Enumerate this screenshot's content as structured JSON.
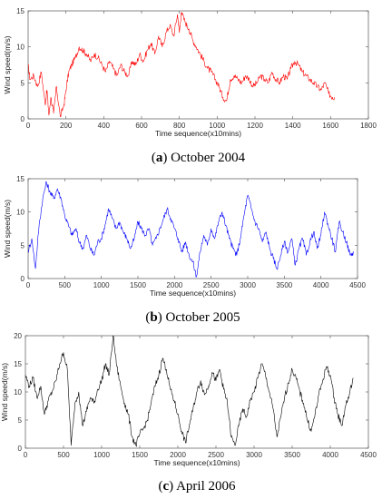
{
  "chart_data": [
    {
      "type": "line",
      "caption_letter": "a",
      "caption_text": "October 2004",
      "xlabel": "Time sequence(x10mins)",
      "ylabel": "Wind speed(m/s)",
      "xlim": [
        0,
        1800
      ],
      "ylim": [
        0,
        15
      ],
      "xticks": [
        0,
        200,
        400,
        600,
        800,
        1000,
        1200,
        1400,
        1600,
        1800
      ],
      "yticks": [
        0,
        5,
        10,
        15
      ],
      "color": "#ff0000",
      "grid": false,
      "series": [
        {
          "x": [
            0,
            10,
            30,
            50,
            70,
            90,
            100,
            110,
            120,
            135,
            150,
            170,
            190,
            200,
            215,
            230,
            250,
            270,
            290,
            310,
            330,
            350,
            370,
            390,
            410,
            430,
            450,
            470,
            490,
            510,
            530,
            550,
            570,
            590,
            610,
            630,
            650,
            670,
            690,
            710,
            730,
            750,
            770,
            790,
            800,
            810,
            830,
            850,
            870,
            890,
            910,
            930,
            950,
            970,
            990,
            1010,
            1030,
            1050,
            1070,
            1090,
            1110,
            1130,
            1150,
            1170,
            1190,
            1210,
            1230,
            1250,
            1270,
            1290,
            1310,
            1330,
            1350,
            1370,
            1390,
            1410,
            1430,
            1450,
            1470,
            1490,
            1510,
            1530,
            1550,
            1570,
            1590,
            1610,
            1620
          ],
          "y": [
            7.5,
            5.5,
            6.0,
            4.5,
            6.5,
            2.0,
            4.0,
            0.5,
            3.0,
            0.8,
            4.5,
            0.3,
            2.0,
            4.0,
            6.5,
            7.5,
            8.5,
            10.0,
            9.5,
            9.0,
            8.0,
            9.0,
            8.5,
            7.5,
            6.5,
            8.0,
            7.0,
            6.0,
            7.5,
            6.5,
            6.0,
            8.0,
            7.5,
            9.0,
            8.0,
            9.5,
            10.5,
            9.0,
            11.5,
            10.0,
            12.0,
            13.0,
            11.5,
            14.5,
            12.0,
            14.8,
            13.5,
            12.5,
            11.0,
            10.0,
            9.0,
            8.0,
            7.0,
            6.5,
            5.5,
            4.5,
            3.0,
            2.5,
            5.5,
            6.0,
            5.5,
            5.0,
            6.0,
            5.5,
            4.5,
            5.0,
            6.0,
            5.5,
            5.0,
            6.5,
            5.5,
            5.0,
            6.0,
            5.5,
            7.0,
            8.0,
            7.5,
            6.5,
            6.0,
            5.5,
            5.0,
            4.5,
            4.0,
            5.0,
            3.5,
            3.0,
            3.0
          ]
        }
      ]
    },
    {
      "type": "line",
      "caption_letter": "b",
      "caption_text": "October 2005",
      "xlabel": "Time sequence(x10mins)",
      "ylabel": "Wind speed(m/s)",
      "xlim": [
        0,
        4500
      ],
      "ylim": [
        0,
        15
      ],
      "xticks": [
        0,
        500,
        1000,
        1500,
        2000,
        2500,
        3000,
        3500,
        4000,
        4500
      ],
      "yticks": [
        0,
        5,
        10,
        15
      ],
      "color": "#0000ff",
      "grid": false,
      "series": [
        {
          "x": [
            0,
            50,
            100,
            150,
            200,
            250,
            300,
            350,
            400,
            450,
            500,
            550,
            600,
            650,
            700,
            750,
            800,
            850,
            900,
            950,
            1000,
            1050,
            1100,
            1150,
            1200,
            1250,
            1300,
            1350,
            1400,
            1450,
            1500,
            1550,
            1600,
            1650,
            1700,
            1750,
            1800,
            1850,
            1900,
            1950,
            2000,
            2050,
            2100,
            2150,
            2200,
            2250,
            2300,
            2350,
            2400,
            2450,
            2500,
            2550,
            2600,
            2650,
            2700,
            2750,
            2800,
            2850,
            2900,
            2950,
            3000,
            3050,
            3100,
            3150,
            3200,
            3250,
            3300,
            3350,
            3400,
            3450,
            3500,
            3550,
            3600,
            3650,
            3700,
            3750,
            3800,
            3850,
            3900,
            3950,
            4000,
            4050,
            4100,
            4150,
            4200,
            4250,
            4300,
            4350,
            4400,
            4450
          ],
          "y": [
            4.0,
            6.0,
            1.5,
            8.0,
            12.0,
            14.5,
            13.0,
            12.0,
            13.5,
            12.0,
            9.5,
            8.0,
            6.5,
            7.5,
            5.5,
            4.5,
            6.5,
            4.5,
            3.5,
            5.5,
            6.0,
            8.0,
            10.5,
            9.0,
            7.5,
            8.5,
            7.0,
            6.0,
            4.5,
            6.0,
            8.5,
            7.5,
            6.5,
            7.5,
            5.0,
            6.0,
            7.5,
            9.0,
            10.5,
            9.0,
            7.5,
            6.0,
            4.0,
            5.5,
            3.5,
            2.5,
            0.3,
            4.0,
            6.5,
            5.0,
            7.5,
            6.0,
            8.5,
            10.0,
            8.0,
            6.0,
            4.5,
            3.5,
            6.0,
            9.5,
            12.5,
            10.5,
            8.5,
            7.5,
            5.5,
            7.0,
            4.5,
            3.0,
            1.5,
            3.5,
            5.5,
            4.0,
            6.0,
            2.0,
            4.5,
            6.0,
            3.5,
            5.5,
            7.0,
            4.5,
            6.5,
            10.0,
            8.0,
            6.0,
            4.0,
            8.5,
            7.0,
            5.5,
            3.5,
            4.0
          ]
        }
      ]
    },
    {
      "type": "line",
      "caption_letter": "c",
      "caption_text": "April 2006",
      "xlabel": "Time sequence(x10mins)",
      "ylabel": "Wind speed(m/s)",
      "xlim": [
        0,
        4500
      ],
      "ylim": [
        0,
        20
      ],
      "xticks": [
        0,
        500,
        1000,
        1500,
        2000,
        2500,
        3000,
        3500,
        4000,
        4500
      ],
      "yticks": [
        0,
        5,
        10,
        15,
        20
      ],
      "color": "#000000",
      "grid": false,
      "series": [
        {
          "x": [
            0,
            50,
            100,
            150,
            200,
            250,
            300,
            350,
            400,
            450,
            500,
            550,
            600,
            650,
            700,
            750,
            800,
            850,
            900,
            950,
            1000,
            1050,
            1100,
            1150,
            1200,
            1250,
            1300,
            1350,
            1400,
            1450,
            1500,
            1550,
            1600,
            1650,
            1700,
            1750,
            1800,
            1850,
            1900,
            1950,
            2000,
            2050,
            2100,
            2150,
            2200,
            2250,
            2300,
            2350,
            2400,
            2450,
            2500,
            2550,
            2600,
            2650,
            2700,
            2750,
            2800,
            2850,
            2900,
            2950,
            3000,
            3050,
            3100,
            3150,
            3200,
            3250,
            3300,
            3350,
            3400,
            3450,
            3500,
            3550,
            3600,
            3650,
            3700,
            3750,
            3800,
            3850,
            3900,
            3950,
            4000,
            4050,
            4100,
            4150,
            4200,
            4250,
            4300
          ],
          "y": [
            13.0,
            11.0,
            12.5,
            9.0,
            11.0,
            6.0,
            8.5,
            10.0,
            12.0,
            15.0,
            17.0,
            14.0,
            0.5,
            8.0,
            10.0,
            4.0,
            6.5,
            9.0,
            8.0,
            10.5,
            12.0,
            15.0,
            13.0,
            20.0,
            14.5,
            11.0,
            8.0,
            6.0,
            2.0,
            0.5,
            2.5,
            3.5,
            5.0,
            8.0,
            11.0,
            13.0,
            16.0,
            14.0,
            10.5,
            8.5,
            6.0,
            3.0,
            1.0,
            4.0,
            7.0,
            10.0,
            12.0,
            9.5,
            11.0,
            13.5,
            12.0,
            14.0,
            10.5,
            8.0,
            2.0,
            0.5,
            4.0,
            7.0,
            5.5,
            8.5,
            10.0,
            12.5,
            15.0,
            13.0,
            10.0,
            7.0,
            2.0,
            5.5,
            9.0,
            11.5,
            14.0,
            12.5,
            10.0,
            8.0,
            5.0,
            3.0,
            6.0,
            9.5,
            12.0,
            14.5,
            13.0,
            9.0,
            6.0,
            4.0,
            7.5,
            9.5,
            12.5
          ]
        }
      ]
    }
  ]
}
